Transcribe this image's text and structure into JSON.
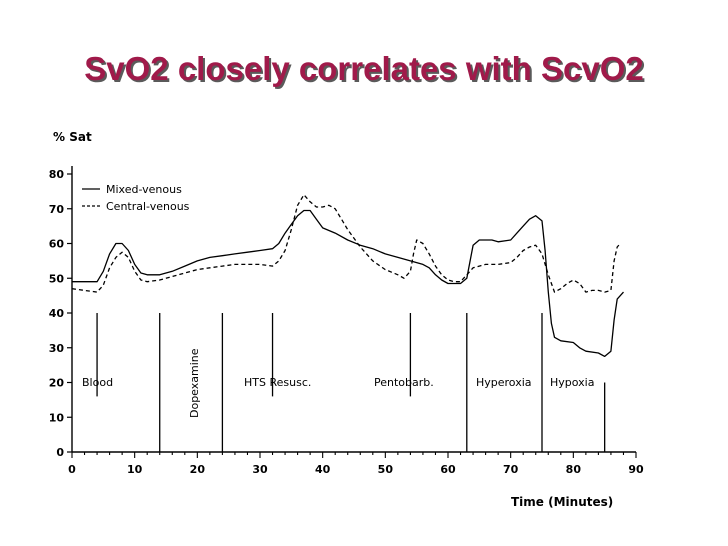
{
  "slide": {
    "title": "SvO2 closely correlates with ScvO2"
  },
  "chart_data": {
    "type": "line",
    "ylabel": "% Sat",
    "xlabel": "Time (Minutes)",
    "xlim": [
      0,
      90
    ],
    "ylim": [
      0,
      80
    ],
    "x_ticks": [
      0,
      10,
      20,
      30,
      40,
      50,
      60,
      70,
      80,
      90
    ],
    "y_ticks": [
      0,
      10,
      20,
      30,
      40,
      50,
      60,
      70,
      80
    ],
    "legend": {
      "placement": "top-left",
      "entries": [
        "Mixed-venous",
        "Central-venous"
      ]
    },
    "series": [
      {
        "name": "Mixed-venous",
        "style": "solid",
        "points": [
          [
            0,
            49
          ],
          [
            4,
            49
          ],
          [
            5,
            52
          ],
          [
            6,
            57
          ],
          [
            7,
            60
          ],
          [
            8,
            60
          ],
          [
            9,
            58
          ],
          [
            10,
            54
          ],
          [
            11,
            51.5
          ],
          [
            12,
            51
          ],
          [
            14,
            51
          ],
          [
            16,
            52
          ],
          [
            18,
            53.5
          ],
          [
            20,
            55
          ],
          [
            22,
            56
          ],
          [
            24,
            56.5
          ],
          [
            26,
            57
          ],
          [
            28,
            57.5
          ],
          [
            30,
            58
          ],
          [
            32,
            58.5
          ],
          [
            33,
            60
          ],
          [
            34,
            63
          ],
          [
            35,
            65.5
          ],
          [
            36,
            68
          ],
          [
            37,
            69.5
          ],
          [
            38,
            69.5
          ],
          [
            39,
            67
          ],
          [
            40,
            64.5
          ],
          [
            42,
            63
          ],
          [
            44,
            61
          ],
          [
            46,
            59.5
          ],
          [
            48,
            58.5
          ],
          [
            50,
            57
          ],
          [
            52,
            56
          ],
          [
            54,
            55
          ],
          [
            56,
            54
          ],
          [
            57,
            53
          ],
          [
            58,
            51
          ],
          [
            59,
            49.5
          ],
          [
            60,
            48.5
          ],
          [
            62,
            48.5
          ],
          [
            63,
            50
          ],
          [
            64,
            59.5
          ],
          [
            65,
            61
          ],
          [
            67,
            61
          ],
          [
            68,
            60.5
          ],
          [
            70,
            61
          ],
          [
            71,
            63
          ],
          [
            72,
            65
          ],
          [
            73,
            67
          ],
          [
            74,
            68
          ],
          [
            75,
            66.5
          ],
          [
            75.5,
            58
          ],
          [
            76,
            46
          ],
          [
            76.5,
            37
          ],
          [
            77,
            33
          ],
          [
            78,
            32
          ],
          [
            80,
            31.5
          ],
          [
            81,
            30
          ],
          [
            82,
            29
          ],
          [
            84,
            28.5
          ],
          [
            85,
            27.5
          ],
          [
            86,
            29
          ],
          [
            86.5,
            38
          ],
          [
            87,
            44
          ],
          [
            88,
            46
          ]
        ]
      },
      {
        "name": "Central-venous",
        "style": "dashed",
        "points": [
          [
            0,
            47
          ],
          [
            2,
            46.5
          ],
          [
            4,
            46
          ],
          [
            5,
            48
          ],
          [
            6,
            53
          ],
          [
            7,
            56
          ],
          [
            8,
            57.5
          ],
          [
            9,
            56
          ],
          [
            10,
            52
          ],
          [
            11,
            49.5
          ],
          [
            12,
            49
          ],
          [
            14,
            49.5
          ],
          [
            16,
            50.5
          ],
          [
            18,
            51.5
          ],
          [
            20,
            52.5
          ],
          [
            22,
            53
          ],
          [
            24,
            53.5
          ],
          [
            26,
            54
          ],
          [
            28,
            54
          ],
          [
            30,
            54
          ],
          [
            32,
            53.5
          ],
          [
            33,
            55
          ],
          [
            34,
            58
          ],
          [
            35,
            64
          ],
          [
            36,
            71
          ],
          [
            37,
            74
          ],
          [
            38,
            72
          ],
          [
            39,
            70.5
          ],
          [
            40,
            70.5
          ],
          [
            41,
            71
          ],
          [
            42,
            70
          ],
          [
            43,
            67
          ],
          [
            44,
            64
          ],
          [
            45,
            61.5
          ],
          [
            46,
            59
          ],
          [
            48,
            55
          ],
          [
            50,
            52.5
          ],
          [
            52,
            51
          ],
          [
            53,
            50
          ],
          [
            54,
            52
          ],
          [
            54.5,
            57
          ],
          [
            55,
            61
          ],
          [
            56,
            60
          ],
          [
            57,
            57
          ],
          [
            58,
            53.5
          ],
          [
            59,
            51
          ],
          [
            60,
            49.5
          ],
          [
            61,
            49
          ],
          [
            62,
            49
          ],
          [
            63,
            51
          ],
          [
            64,
            53
          ],
          [
            66,
            54
          ],
          [
            68,
            54
          ],
          [
            70,
            54.5
          ],
          [
            71,
            56
          ],
          [
            72,
            58
          ],
          [
            73,
            59
          ],
          [
            74,
            59.5
          ],
          [
            75,
            57
          ],
          [
            76,
            51
          ],
          [
            77,
            46
          ],
          [
            78,
            47
          ],
          [
            79,
            48.5
          ],
          [
            80,
            49.5
          ],
          [
            81,
            48.5
          ],
          [
            82,
            46
          ],
          [
            83,
            46.5
          ],
          [
            84,
            46.5
          ],
          [
            85,
            46
          ],
          [
            86,
            46.5
          ],
          [
            86.5,
            55
          ],
          [
            87,
            59
          ],
          [
            87.5,
            60
          ]
        ]
      }
    ],
    "annotations": [
      "Blood",
      "Dopexamine",
      "HTS Resusc.",
      "Pentobarb.",
      "Hyperoxia",
      "Hypoxia"
    ],
    "markers": [
      {
        "kind": "short",
        "x": 4
      },
      {
        "kind": "long",
        "x": 14
      },
      {
        "kind": "long",
        "x": 24
      },
      {
        "kind": "short",
        "x": 32
      },
      {
        "kind": "short",
        "x": 54
      },
      {
        "kind": "long",
        "x": 63
      },
      {
        "kind": "long",
        "x": 75
      },
      {
        "kind": "low",
        "x": 85
      }
    ]
  }
}
